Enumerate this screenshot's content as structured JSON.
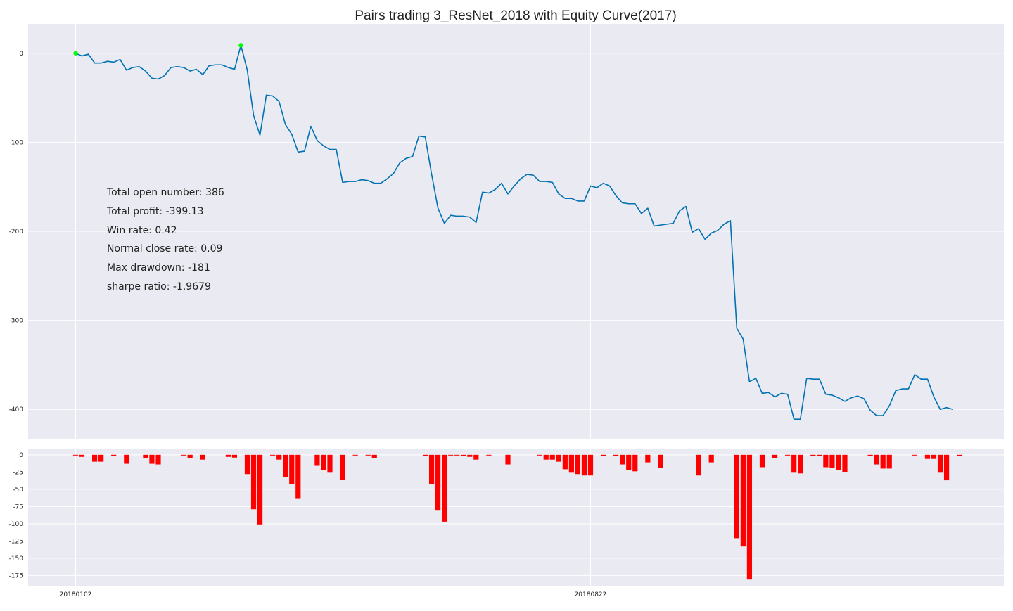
{
  "chart_data": {
    "type": "line",
    "title": "Pairs trading 3_ResNet_2018 with Equity Curve(2017)",
    "colors": {
      "background_panel": "#eaeaf2",
      "grid": "#ffffff",
      "equity_line": "#0072b2",
      "peak_marker": "#00ff00",
      "drawdown_bar": "#ff0000"
    },
    "x_tick_labels": [
      "20180102",
      "20180822"
    ],
    "x_tick_indices": [
      0,
      81
    ],
    "equity": {
      "ylim": [
        -433,
        33
      ],
      "y_ticks": [
        0,
        -100,
        -200,
        -300,
        -400
      ],
      "grid": true,
      "values": [
        0,
        -3,
        -1,
        -11,
        -11,
        -9,
        -10,
        -7,
        -19,
        -16,
        -15,
        -20,
        -28,
        -29,
        -25,
        -16,
        -15,
        -16,
        -20,
        -18,
        -24,
        -14,
        -13,
        -13,
        -16,
        -18,
        9,
        -19,
        -70,
        -92,
        -47,
        -48,
        -54,
        -80,
        -91,
        -111,
        -110,
        -82,
        -98,
        -104,
        -108,
        -108,
        -145,
        -144,
        -144,
        -142,
        -143,
        -146,
        -146,
        -141,
        -135,
        -123,
        -118,
        -116,
        -93,
        -94,
        -136,
        -174,
        -191,
        -182,
        -183,
        -183,
        -184,
        -190,
        -156,
        -157,
        -153,
        -146,
        -158,
        -149,
        -141,
        -136,
        -137,
        -144,
        -144,
        -145,
        -158,
        -163,
        -163,
        -166,
        -166,
        -149,
        -151,
        -146,
        -149,
        -160,
        -168,
        -169,
        -169,
        -180,
        -174,
        -194,
        -193,
        -192,
        -191,
        -177,
        -172,
        -201,
        -197,
        -209,
        -202,
        -199,
        -192,
        -188,
        -309,
        -321,
        -369,
        -365,
        -382,
        -381,
        -386,
        -382,
        -383,
        -411,
        -411,
        -365,
        -366,
        -366,
        -383,
        -384,
        -387,
        -391,
        -387,
        -385,
        -388,
        -401,
        -407,
        -407,
        -396,
        -379,
        -377,
        -377,
        -361,
        -366,
        -366,
        -386,
        -400,
        -398,
        -400
      ],
      "peak_indices": [
        0,
        26
      ]
    },
    "drawdown": {
      "ylim": [
        -191,
        9
      ],
      "y_ticks": [
        0,
        -25,
        -50,
        -75,
        -100,
        -125,
        -150,
        -175
      ],
      "grid": true,
      "values": [
        -1,
        -3,
        0,
        -10,
        -10,
        0,
        -2,
        0,
        -13,
        0,
        0,
        -5,
        -13,
        -14,
        0,
        0,
        0,
        -1,
        -5,
        0,
        -7,
        0,
        0,
        0,
        -3,
        -4,
        0,
        -28,
        -79,
        -101,
        0,
        -1,
        -7,
        -32,
        -43,
        -63,
        0,
        0,
        -16,
        -22,
        -26,
        0,
        -36,
        0,
        -1,
        0,
        -1,
        -5,
        0,
        0,
        0,
        0,
        0,
        0,
        0,
        -2,
        -43,
        -81,
        -97,
        -1,
        -1,
        -2,
        -3,
        -7,
        0,
        -1,
        0,
        0,
        -14,
        0,
        0,
        0,
        0,
        -1,
        -7,
        -7,
        -10,
        -21,
        -26,
        -28,
        -30,
        -30,
        0,
        -2,
        0,
        -2,
        -14,
        -22,
        -24,
        0,
        -11,
        0,
        -19,
        0,
        0,
        0,
        0,
        0,
        -30,
        0,
        -11,
        0,
        0,
        0,
        -121,
        -133,
        -181,
        0,
        -18,
        0,
        -5,
        0,
        -1,
        -26,
        -27,
        0,
        -2,
        -2,
        -18,
        -19,
        -22,
        -25,
        0,
        0,
        0,
        -2,
        -14,
        -20,
        -20,
        0,
        0,
        0,
        -1,
        0,
        -6,
        -6,
        -26,
        -37,
        0,
        -2
      ]
    }
  },
  "stats": [
    "Total open number: 386",
    "Total profit: -399.13",
    "Win rate: 0.42",
    "Normal close rate: 0.09",
    "Max drawdown: -181",
    "sharpe ratio: -1.9679"
  ]
}
